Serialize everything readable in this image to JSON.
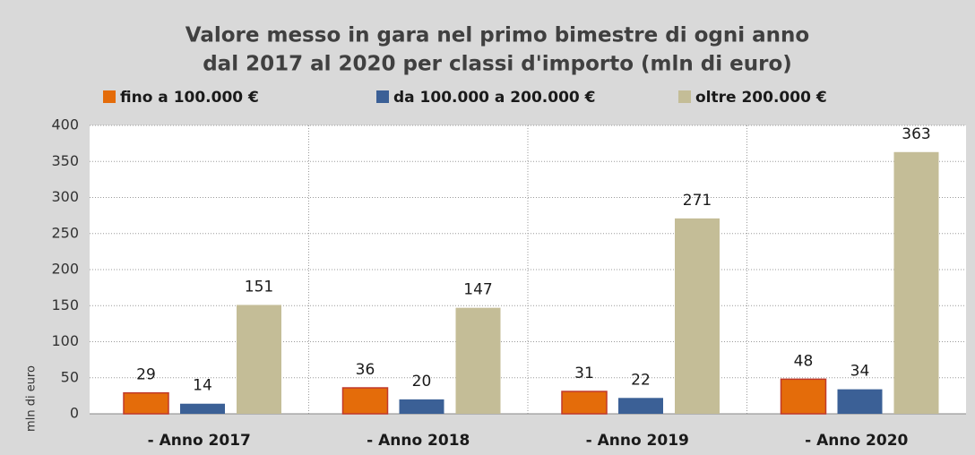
{
  "chart_data": {
    "type": "bar",
    "title": [
      "Valore messo in gara nel primo bimestre di ogni anno",
      "dal 2017 al 2020 per classi d'importo (mln di euro)"
    ],
    "y_label": "mln di euro",
    "categories": [
      "- Anno 2017",
      "- Anno 2018",
      "- Anno 2019",
      "- Anno 2020"
    ],
    "series": [
      {
        "name": "fino a 100.000 €",
        "color": "#e46c0a",
        "values": [
          29,
          36,
          31,
          48
        ]
      },
      {
        "name": "da 100.000 a 200.000 €",
        "color": "#3b6096",
        "values": [
          14,
          20,
          22,
          34
        ]
      },
      {
        "name": "oltre 200.000 €",
        "color": "#c4bd97",
        "values": [
          151,
          147,
          271,
          363
        ]
      }
    ],
    "ylim": [
      0,
      400
    ],
    "yticks": [
      0,
      50,
      100,
      150,
      200,
      250,
      300,
      350,
      400
    ],
    "grid": true,
    "legend": "top"
  }
}
